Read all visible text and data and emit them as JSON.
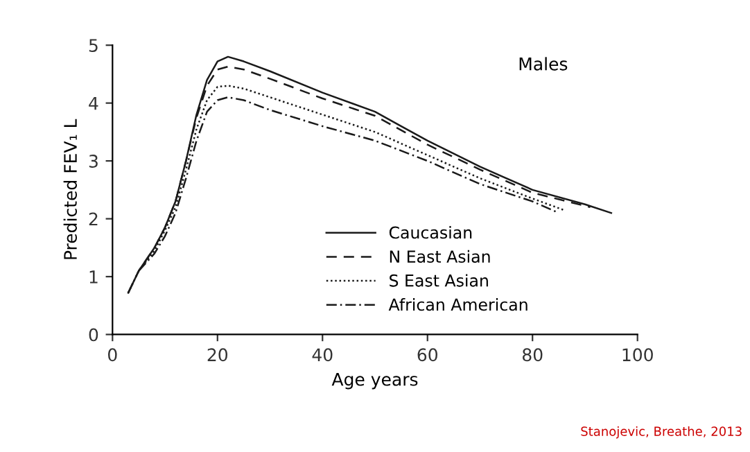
{
  "chart_data": {
    "type": "line",
    "title": "Males",
    "xlabel": "Age years",
    "ylabel": "Predicted FEV₁ L",
    "xlim": [
      0,
      100
    ],
    "xticks": [
      0,
      20,
      40,
      60,
      80,
      100
    ],
    "ylim": [
      0,
      5
    ],
    "yticks": [
      0,
      1,
      2,
      3,
      4,
      5
    ],
    "grid": false,
    "legend": "bottom",
    "marker": "none",
    "annotations": [
      "Stanojevic, Breathe, 2013"
    ],
    "series": [
      {
        "name": "Caucasian",
        "color": "#1a1a1a",
        "line_style": "solid",
        "x": [
          3,
          5,
          8,
          10,
          12,
          14,
          16,
          18,
          20,
          22,
          25,
          30,
          40,
          50,
          55,
          60,
          70,
          80,
          90,
          95
        ],
        "values": [
          0.72,
          1.1,
          1.5,
          1.85,
          2.3,
          3.0,
          3.8,
          4.4,
          4.72,
          4.8,
          4.72,
          4.55,
          4.18,
          3.85,
          3.6,
          3.35,
          2.9,
          2.5,
          2.25,
          2.1
        ]
      },
      {
        "name": "N East Asian",
        "color": "#1a1a1a",
        "line_style": "dashed",
        "x": [
          3,
          5,
          8,
          10,
          12,
          14,
          16,
          18,
          20,
          22,
          25,
          30,
          40,
          50,
          60,
          70,
          80,
          91
        ],
        "values": [
          0.72,
          1.1,
          1.5,
          1.85,
          2.3,
          3.0,
          3.75,
          4.3,
          4.58,
          4.63,
          4.58,
          4.42,
          4.08,
          3.78,
          3.28,
          2.85,
          2.45,
          2.2
        ]
      },
      {
        "name": "S East Asian",
        "color": "#1a1a1a",
        "line_style": "dotted",
        "x": [
          3,
          5,
          8,
          10,
          12,
          14,
          16,
          18,
          20,
          22,
          25,
          30,
          40,
          50,
          60,
          70,
          80,
          86
        ],
        "values": [
          0.72,
          1.1,
          1.45,
          1.8,
          2.2,
          2.85,
          3.55,
          4.05,
          4.28,
          4.3,
          4.25,
          4.1,
          3.8,
          3.5,
          3.1,
          2.7,
          2.35,
          2.15
        ]
      },
      {
        "name": "African American",
        "color": "#1a1a1a",
        "line_style": "dashdot",
        "x": [
          5,
          8,
          10,
          12,
          14,
          16,
          18,
          20,
          22,
          25,
          30,
          40,
          50,
          60,
          70,
          80,
          85
        ],
        "values": [
          1.1,
          1.4,
          1.7,
          2.1,
          2.7,
          3.35,
          3.85,
          4.05,
          4.1,
          4.05,
          3.88,
          3.6,
          3.35,
          3.0,
          2.6,
          2.3,
          2.1
        ]
      }
    ]
  }
}
